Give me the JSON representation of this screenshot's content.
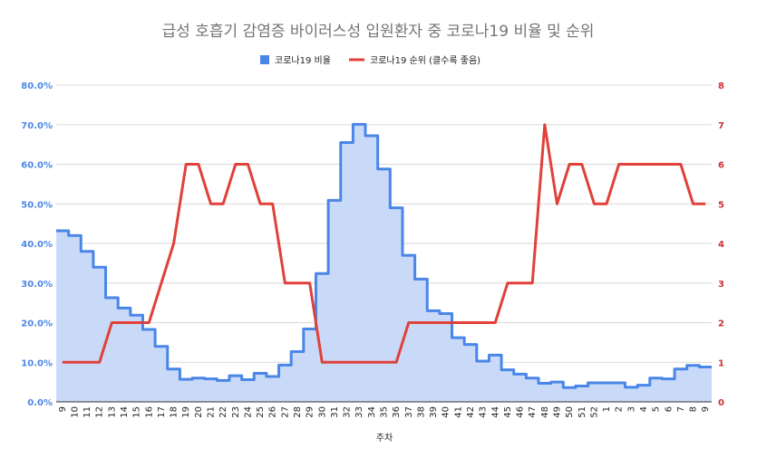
{
  "chart_data": {
    "type": "line",
    "title": "급성 호흡기 감염증 바이러스성 입원환자 중 코로나19 비율 및 순위",
    "xlabel": "주차",
    "x": [
      "9",
      "10",
      "11",
      "12",
      "13",
      "14",
      "15",
      "16",
      "17",
      "18",
      "19",
      "20",
      "21",
      "22",
      "23",
      "24",
      "25",
      "26",
      "27",
      "28",
      "29",
      "30",
      "31",
      "32",
      "33",
      "34",
      "35",
      "36",
      "37",
      "38",
      "39",
      "40",
      "41",
      "42",
      "43",
      "44",
      "45",
      "46",
      "47",
      "48",
      "49",
      "50",
      "51",
      "52",
      "1",
      "2",
      "3",
      "4",
      "5",
      "6",
      "7",
      "8",
      "9"
    ],
    "y_left_ticks": [
      "0.0%",
      "10.0%",
      "20.0%",
      "30.0%",
      "40.0%",
      "50.0%",
      "60.0%",
      "70.0%",
      "80.0%"
    ],
    "y_right_ticks": [
      "0",
      "1",
      "2",
      "3",
      "4",
      "5",
      "6",
      "7",
      "8"
    ],
    "ylim_left": [
      0,
      80
    ],
    "ylim_right": [
      0,
      8
    ],
    "grid": true,
    "legend_position": "top",
    "series": [
      {
        "name": "코로나19 비율",
        "axis": "left",
        "style": "stepped-area",
        "color": "#4a86e8",
        "fill": "#c9daf8",
        "values": [
          43.2,
          42,
          38,
          34,
          26.3,
          23.7,
          21.9,
          18.3,
          14,
          8.3,
          5.7,
          6,
          5.8,
          5.4,
          6.6,
          5.6,
          7.2,
          6.4,
          9.3,
          12.7,
          18.4,
          32.4,
          50.9,
          65.5,
          70.1,
          67.2,
          58.8,
          49,
          37,
          31,
          23,
          22.3,
          16.2,
          14.5,
          10.3,
          11.8,
          8.1,
          7,
          6,
          4.7,
          5,
          3.6,
          4,
          4.8,
          4.8,
          4.8,
          3.7,
          4.2,
          6,
          5.8,
          8.3,
          9.2,
          8.8
        ]
      },
      {
        "name": "코로나19 순위 (클수록 좋음)",
        "axis": "right",
        "style": "line",
        "color": "#e0413a",
        "values": [
          1,
          1,
          1,
          1,
          2,
          2,
          2,
          2,
          3,
          4,
          6,
          6,
          5,
          5,
          6,
          6,
          5,
          5,
          3,
          3,
          3,
          1,
          1,
          1,
          1,
          1,
          1,
          1,
          2,
          2,
          2,
          2,
          2,
          2,
          2,
          2,
          3,
          3,
          3,
          7,
          5,
          6,
          6,
          5,
          5,
          6,
          6,
          6,
          6,
          6,
          6,
          5,
          5
        ]
      }
    ]
  }
}
